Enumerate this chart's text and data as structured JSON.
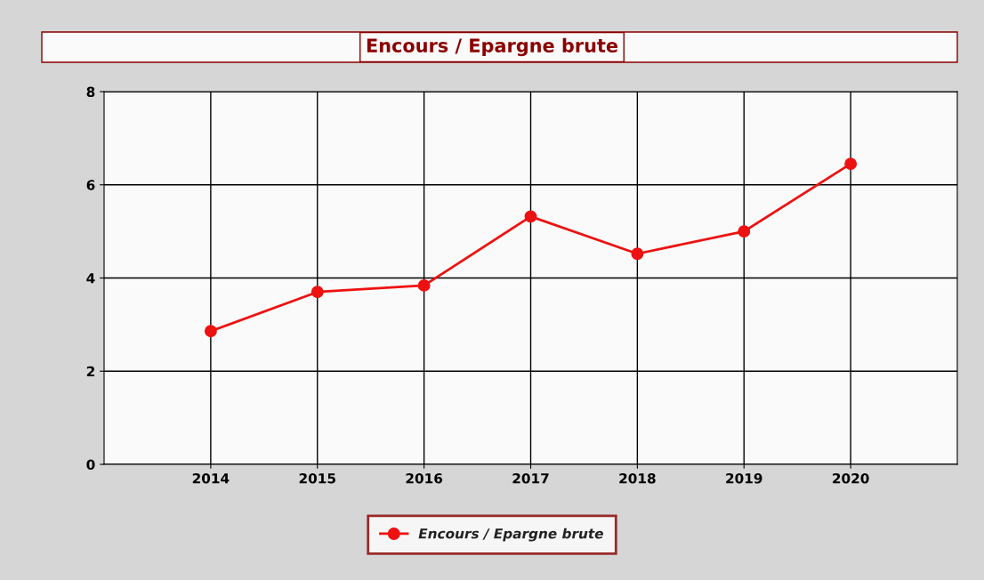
{
  "chart_data": {
    "type": "line",
    "title": "Encours / Epargne brute",
    "x": [
      2014,
      2015,
      2016,
      2017,
      2018,
      2019,
      2020
    ],
    "series": [
      {
        "name": "Encours / Epargne brute",
        "color": "#ee1111",
        "values": [
          2.86,
          3.7,
          3.84,
          5.32,
          4.52,
          5.0,
          6.45
        ]
      }
    ],
    "xlim": [
      2013,
      2021
    ],
    "xticks": [
      2014,
      2015,
      2016,
      2017,
      2018,
      2019,
      2020
    ],
    "ylim": [
      0,
      8
    ],
    "yticks": [
      0,
      2,
      4,
      6,
      8
    ],
    "grid": true,
    "legend": "bottom",
    "marker": "circle",
    "line_style": "solid"
  }
}
